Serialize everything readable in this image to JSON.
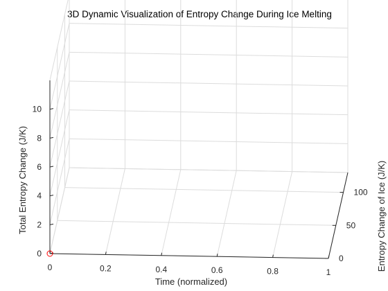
{
  "chart_data": {
    "type": "line3d",
    "title": "3D Dynamic Visualization of Entropy Change During Ice Melting",
    "xlabel": "Time (normalized)",
    "ylabel": "Entropy Change of Ice (J/K)",
    "zlabel": "Total Entropy Change (J/K)",
    "xlim": [
      0,
      1
    ],
    "ylim": [
      0,
      130
    ],
    "zlim": [
      0,
      12
    ],
    "x_ticks": [
      "0",
      "0.2",
      "0.4",
      "0.6",
      "0.8",
      "1"
    ],
    "y_ticks": [
      "0",
      "50",
      "100"
    ],
    "z_ticks": [
      "0",
      "2",
      "4",
      "6",
      "8",
      "10"
    ],
    "grid": true,
    "series": [
      {
        "points": [
          {
            "x": 0,
            "y": 0,
            "z": 0
          }
        ],
        "color": "#ff0000",
        "marker": "circle"
      }
    ]
  }
}
